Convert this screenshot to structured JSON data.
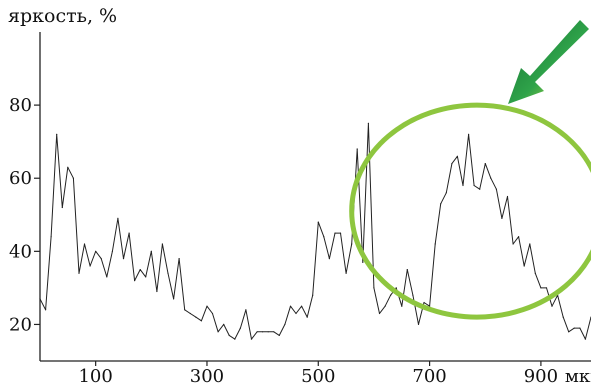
{
  "chart_data": {
    "type": "line",
    "ylabel": "яркость, %",
    "xunit": "мкм",
    "xlim": [
      0,
      990
    ],
    "ylim": [
      10,
      100
    ],
    "xticks": [
      100,
      300,
      500,
      700,
      900
    ],
    "yticks": [
      20,
      40,
      60,
      80
    ],
    "grid": false,
    "series": [
      {
        "color": "#222222",
        "x": [
          0,
          10,
          20,
          30,
          40,
          50,
          60,
          70,
          80,
          90,
          100,
          110,
          120,
          130,
          140,
          150,
          160,
          170,
          180,
          190,
          200,
          210,
          220,
          230,
          240,
          250,
          260,
          270,
          280,
          290,
          300,
          310,
          320,
          330,
          340,
          350,
          360,
          370,
          380,
          390,
          400,
          410,
          420,
          430,
          440,
          450,
          460,
          470,
          480,
          490,
          500,
          510,
          520,
          530,
          540,
          550,
          560,
          570,
          580,
          590,
          600,
          610,
          620,
          630,
          640,
          650,
          660,
          670,
          680,
          690,
          700,
          710,
          720,
          730,
          740,
          750,
          760,
          770,
          780,
          790,
          800,
          810,
          820,
          830,
          840,
          850,
          860,
          870,
          880,
          890,
          900,
          910,
          920,
          930,
          940,
          950,
          960,
          970,
          980,
          990
        ],
        "y": [
          27,
          24,
          44,
          72,
          52,
          63,
          60,
          34,
          42,
          36,
          40,
          38,
          33,
          40,
          49,
          38,
          45,
          32,
          35,
          33,
          40,
          29,
          42,
          34,
          27,
          38,
          24,
          23,
          22,
          21,
          25,
          23,
          18,
          20,
          17,
          16,
          19,
          24,
          16,
          18,
          18,
          18,
          18,
          17,
          20,
          25,
          23,
          25,
          22,
          28,
          48,
          44,
          38,
          45,
          45,
          34,
          42,
          68,
          37,
          75,
          30,
          23,
          25,
          28,
          30,
          25,
          35,
          28,
          20,
          26,
          25,
          42,
          53,
          56,
          64,
          66,
          58,
          72,
          58,
          57,
          64,
          60,
          57,
          49,
          55,
          42,
          44,
          36,
          42,
          34,
          30,
          30,
          25,
          28,
          22,
          18,
          19,
          19,
          16,
          22
        ]
      }
    ],
    "annotations": [
      {
        "type": "ellipse",
        "color": "#8ec63f",
        "x_center": 785,
        "y_center": 51,
        "x_radius": 225,
        "y_radius": 29
      },
      {
        "type": "arrow",
        "color": "#1e8a3e",
        "points_to": [
          770,
          89
        ]
      }
    ]
  }
}
